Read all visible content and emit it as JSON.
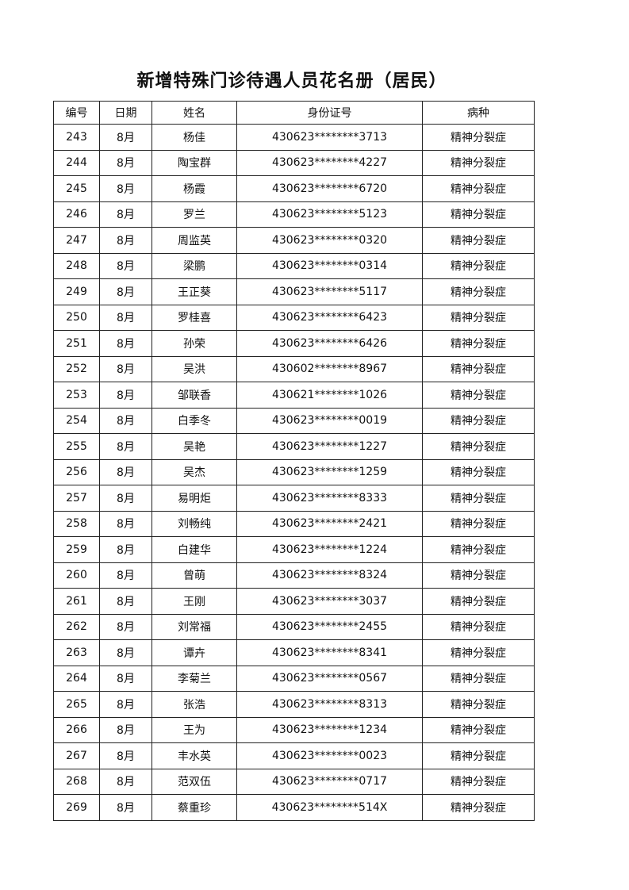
{
  "title": "新增特殊门诊待遇人员花名册（居民）",
  "headers": [
    "编号",
    "日期",
    "姓名",
    "身份证号",
    "病种"
  ],
  "rows": [
    [
      "243",
      "8月",
      "杨佳",
      "430623********3713",
      "精神分裂症"
    ],
    [
      "244",
      "8月",
      "陶宝群",
      "430623********4227",
      "精神分裂症"
    ],
    [
      "245",
      "8月",
      "杨霞",
      "430623********6720",
      "精神分裂症"
    ],
    [
      "246",
      "8月",
      "罗兰",
      "430623********5123",
      "精神分裂症"
    ],
    [
      "247",
      "8月",
      "周监英",
      "430623********0320",
      "精神分裂症"
    ],
    [
      "248",
      "8月",
      "梁鹏",
      "430623********0314",
      "精神分裂症"
    ],
    [
      "249",
      "8月",
      "王正葵",
      "430623********5117",
      "精神分裂症"
    ],
    [
      "250",
      "8月",
      "罗桂喜",
      "430623********6423",
      "精神分裂症"
    ],
    [
      "251",
      "8月",
      "孙荣",
      "430623********6426",
      "精神分裂症"
    ],
    [
      "252",
      "8月",
      "吴洪",
      "430602********8967",
      "精神分裂症"
    ],
    [
      "253",
      "8月",
      "邹联香",
      "430621********1026",
      "精神分裂症"
    ],
    [
      "254",
      "8月",
      "白季冬",
      "430623********0019",
      "精神分裂症"
    ],
    [
      "255",
      "8月",
      "吴艳",
      "430623********1227",
      "精神分裂症"
    ],
    [
      "256",
      "8月",
      "吴杰",
      "430623********1259",
      "精神分裂症"
    ],
    [
      "257",
      "8月",
      "易明炬",
      "430623********8333",
      "精神分裂症"
    ],
    [
      "258",
      "8月",
      "刘畅纯",
      "430623********2421",
      "精神分裂症"
    ],
    [
      "259",
      "8月",
      "白建华",
      "430623********1224",
      "精神分裂症"
    ],
    [
      "260",
      "8月",
      "曾萌",
      "430623********8324",
      "精神分裂症"
    ],
    [
      "261",
      "8月",
      "王刚",
      "430623********3037",
      "精神分裂症"
    ],
    [
      "262",
      "8月",
      "刘常福",
      "430623********2455",
      "精神分裂症"
    ],
    [
      "263",
      "8月",
      "谭卉",
      "430623********8341",
      "精神分裂症"
    ],
    [
      "264",
      "8月",
      "李菊兰",
      "430623********0567",
      "精神分裂症"
    ],
    [
      "265",
      "8月",
      "张浩",
      "430623********8313",
      "精神分裂症"
    ],
    [
      "266",
      "8月",
      "王为",
      "430623********1234",
      "精神分裂症"
    ],
    [
      "267",
      "8月",
      "丰水英",
      "430623********0023",
      "精神分裂症"
    ],
    [
      "268",
      "8月",
      "范双伍",
      "430623********0717",
      "精神分裂症"
    ],
    [
      "269",
      "8月",
      "蔡重珍",
      "430623********514X",
      "精神分裂症"
    ]
  ]
}
